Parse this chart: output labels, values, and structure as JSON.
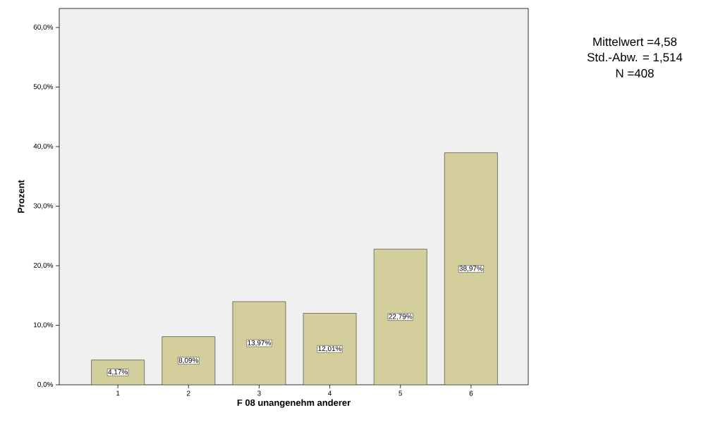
{
  "chart_data": {
    "type": "bar",
    "xlabel": "F 08 unangenehm anderer",
    "ylabel": "Prozent",
    "categories": [
      "1",
      "2",
      "3",
      "4",
      "5",
      "6"
    ],
    "values": [
      4.17,
      8.09,
      13.97,
      12.01,
      22.79,
      38.97
    ],
    "value_labels": [
      "4,17%",
      "8,09%",
      "13,97%",
      "12,01%",
      "22,79%",
      "38,97%"
    ],
    "color": "#d3ce9b",
    "ylim": [
      0,
      63.2
    ],
    "yticks": [
      {
        "value": 0,
        "label": "0,0%"
      },
      {
        "value": 10,
        "label": "10,0%"
      },
      {
        "value": 20,
        "label": "20,0%"
      },
      {
        "value": 30,
        "label": "30,0%"
      },
      {
        "value": 40,
        "label": "40,0%"
      },
      {
        "value": 50,
        "label": "50,0%"
      },
      {
        "value": 60,
        "label": "60,0%"
      }
    ],
    "annotations": [
      "Mittelwert =4,58",
      "Std.-Abw. = 1,514",
      "N =408"
    ]
  }
}
